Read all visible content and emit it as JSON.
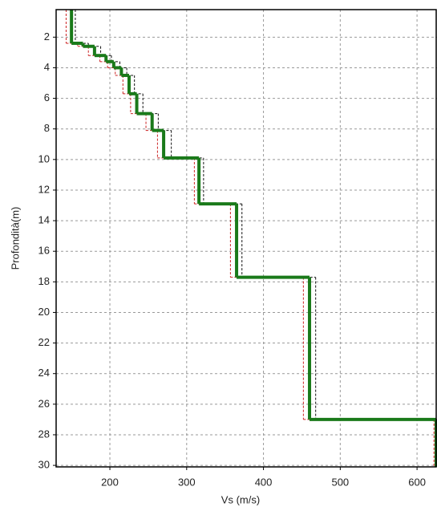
{
  "chart_data": {
    "type": "step",
    "x_label": "Vs (m/s)",
    "y_label": "Profondità(m)",
    "depths": [
      0.2,
      2.4,
      2.6,
      3.2,
      3.6,
      4.0,
      4.5,
      5.7,
      7.0,
      8.1,
      9.9,
      12.9,
      17.7,
      27.0
    ],
    "series": [
      {
        "color": "#cc2222",
        "dash": true,
        "width": 1,
        "values": [
          143,
          158,
          172,
          187,
          197,
          207,
          217,
          227,
          247,
          262,
          310,
          357,
          452,
          622
        ]
      },
      {
        "color": "#111111",
        "dash": true,
        "width": 1,
        "values": [
          155,
          172,
          188,
          202,
          213,
          222,
          232,
          243,
          263,
          280,
          322,
          372,
          468,
          628
        ]
      },
      {
        "color": "#1a7a1a",
        "dash": false,
        "width": 4,
        "values": [
          150,
          165,
          180,
          195,
          205,
          215,
          225,
          235,
          255,
          270,
          316,
          365,
          460,
          625
        ]
      }
    ],
    "xlim": [
      130,
      626
    ],
    "ylim": [
      0.2,
      30.1
    ],
    "xticks": [
      200,
      300,
      400,
      500,
      600
    ],
    "yticks": [
      2,
      4,
      6,
      8,
      10,
      12,
      14,
      16,
      18,
      20,
      22,
      24,
      26,
      28,
      30
    ],
    "grid": true,
    "y_inverted": true
  }
}
